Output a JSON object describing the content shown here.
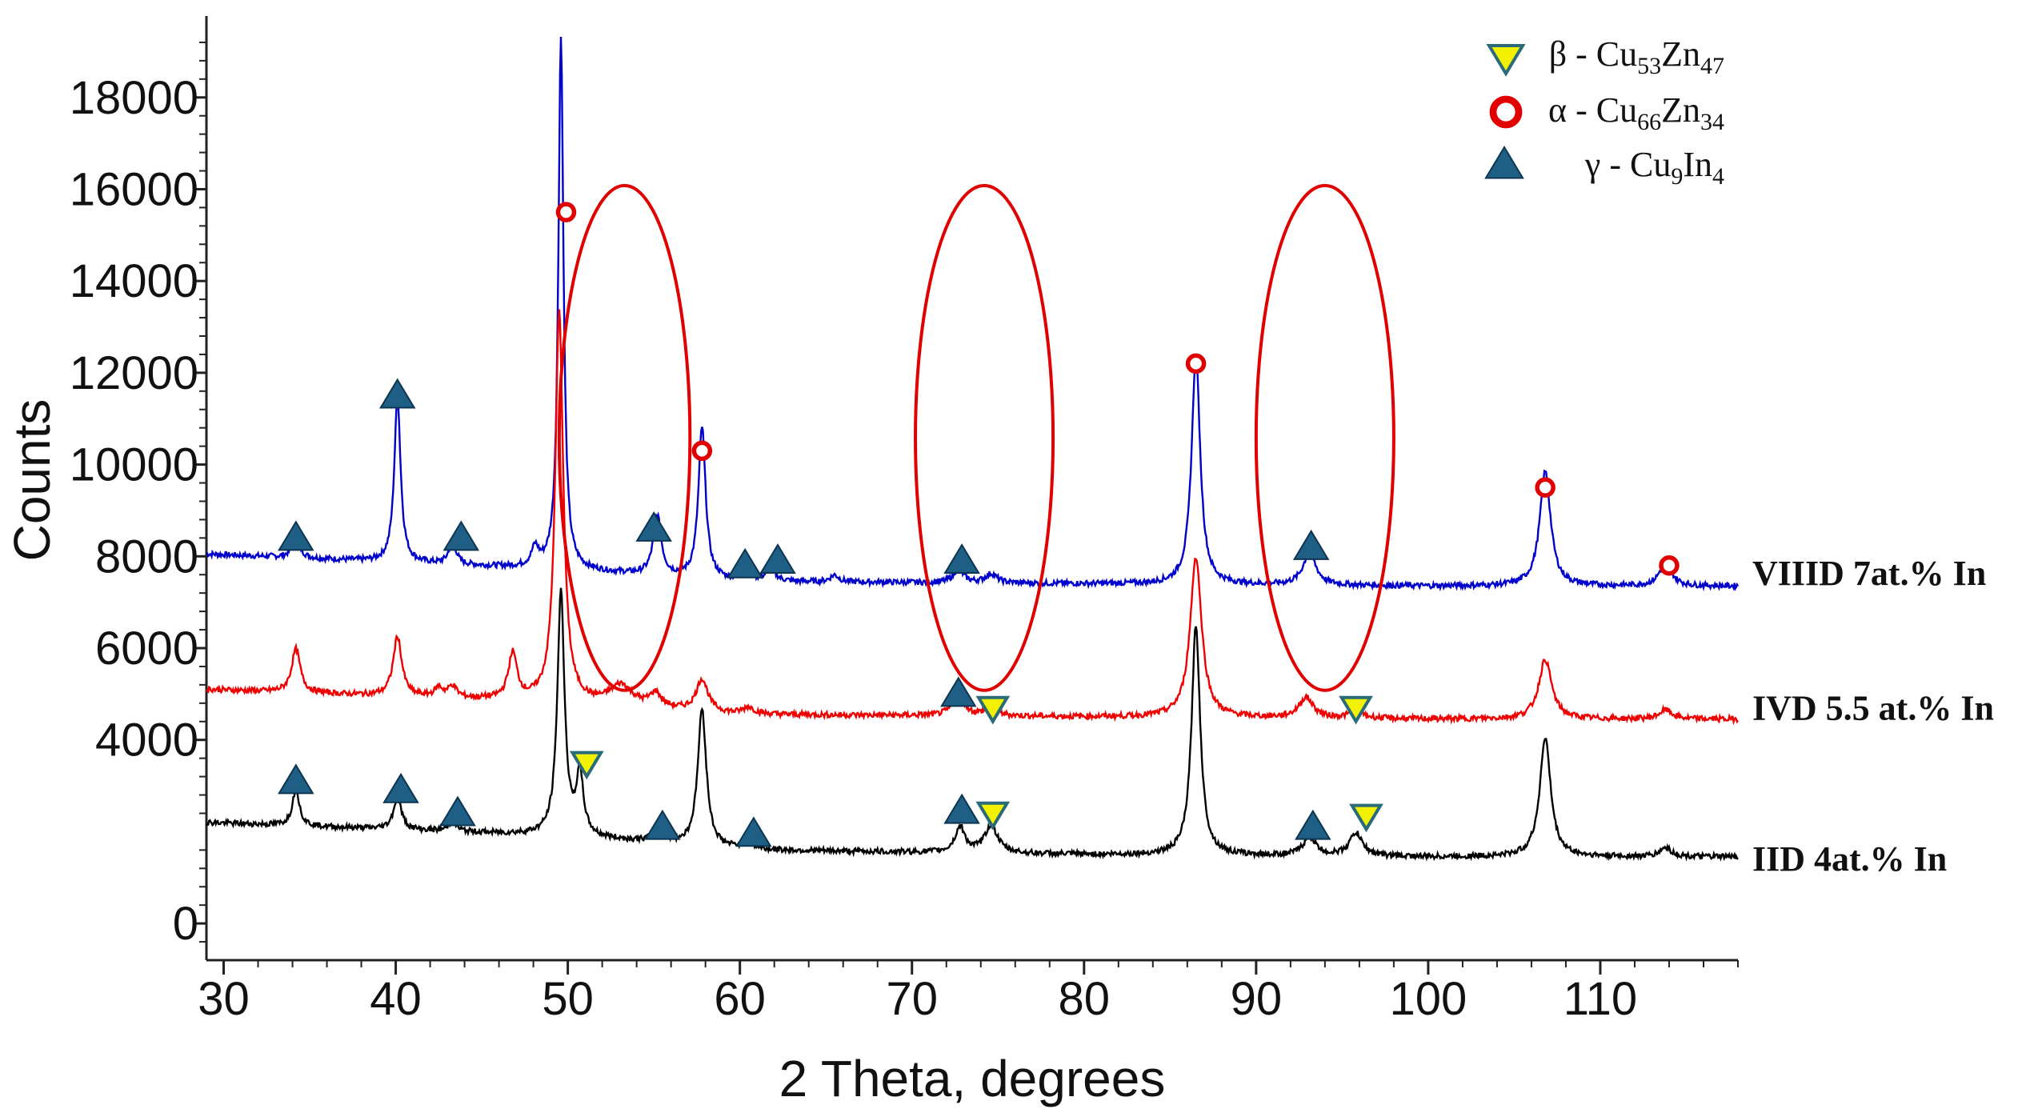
{
  "chart_data": {
    "type": "line",
    "title": "",
    "xlabel": "2 Theta, degrees",
    "ylabel": "Counts",
    "xlim": [
      29,
      118
    ],
    "ylim": [
      -800,
      19600
    ],
    "x_ticks": [
      30,
      40,
      50,
      60,
      70,
      80,
      90,
      100,
      110
    ],
    "x_tick_labels": [
      "30",
      "40",
      "50",
      "60",
      "70",
      "80",
      "90",
      "100",
      "110"
    ],
    "y_ticks": [
      0,
      4000,
      6000,
      8000,
      10000,
      12000,
      14000,
      16000,
      18000
    ],
    "y_tick_labels": [
      "0",
      "4000",
      "6000",
      "8000",
      "10000",
      "12000",
      "14000",
      "16000",
      "18000"
    ],
    "grid": false,
    "legend": {
      "position": "top-right",
      "entries": [
        {
          "marker": "beta",
          "label": "β - Cu",
          "sub1": "53",
          "mid": "Zn",
          "sub2": "47"
        },
        {
          "marker": "alpha",
          "label": "α - Cu",
          "sub1": "66",
          "mid": "Zn",
          "sub2": "34"
        },
        {
          "marker": "gamma",
          "label": "γ - Cu",
          "sub1": "9",
          "mid": "In",
          "sub2": "4"
        }
      ]
    },
    "series": [
      {
        "name": "VIIID 7at.% In",
        "color": "#0000cc",
        "baseline": [
          [
            29,
            8050
          ],
          [
            50,
            7700
          ],
          [
            60,
            7450
          ],
          [
            80,
            7400
          ],
          [
            100,
            7350
          ],
          [
            118,
            7350
          ]
        ],
        "peaks": [
          [
            34.2,
            500,
            0.25
          ],
          [
            40.1,
            3600,
            0.22
          ],
          [
            43.3,
            500,
            0.25
          ],
          [
            48.1,
            400,
            0.25
          ],
          [
            49.6,
            11600,
            0.18
          ],
          [
            55.2,
            1300,
            0.28
          ],
          [
            57.8,
            3300,
            0.25
          ],
          [
            60.4,
            250,
            0.3
          ],
          [
            61.8,
            300,
            0.3
          ],
          [
            65.5,
            150,
            0.3
          ],
          [
            72.7,
            300,
            0.35
          ],
          [
            74.6,
            200,
            0.4
          ],
          [
            86.5,
            5000,
            0.3
          ],
          [
            93.1,
            700,
            0.45
          ],
          [
            106.8,
            2500,
            0.38
          ],
          [
            113.8,
            550,
            0.4
          ]
        ],
        "label_y": 7380
      },
      {
        "name": "IVD 5.5 at.% In",
        "color": "#ee0000",
        "baseline": [
          [
            29,
            5100
          ],
          [
            50,
            4800
          ],
          [
            60,
            4550
          ],
          [
            80,
            4500
          ],
          [
            100,
            4450
          ],
          [
            118,
            4450
          ]
        ],
        "peaks": [
          [
            34.2,
            950,
            0.3
          ],
          [
            40.1,
            1300,
            0.3
          ],
          [
            42.5,
            200,
            0.3
          ],
          [
            43.3,
            250,
            0.3
          ],
          [
            46.8,
            1000,
            0.3
          ],
          [
            49.5,
            8500,
            0.28
          ],
          [
            53.1,
            450,
            0.8
          ],
          [
            55.1,
            300,
            0.4
          ],
          [
            57.8,
            700,
            0.4
          ],
          [
            60.5,
            150,
            0.4
          ],
          [
            72.7,
            400,
            0.45
          ],
          [
            74.6,
            150,
            0.5
          ],
          [
            86.5,
            3500,
            0.4
          ],
          [
            92.9,
            450,
            0.5
          ],
          [
            95.8,
            150,
            0.5
          ],
          [
            106.8,
            1300,
            0.45
          ],
          [
            113.8,
            200,
            0.45
          ]
        ],
        "label_y": 4440
      },
      {
        "name": "IID  4at.% In",
        "color": "#000000",
        "baseline": [
          [
            29,
            2200
          ],
          [
            50,
            1900
          ],
          [
            60,
            1600
          ],
          [
            80,
            1500
          ],
          [
            100,
            1450
          ],
          [
            118,
            1450
          ]
        ],
        "peaks": [
          [
            34.2,
            800,
            0.25
          ],
          [
            40.1,
            700,
            0.28
          ],
          [
            43.3,
            200,
            0.3
          ],
          [
            49.6,
            5300,
            0.25
          ],
          [
            50.7,
            1300,
            0.25
          ],
          [
            55.3,
            300,
            0.4
          ],
          [
            57.8,
            3000,
            0.3
          ],
          [
            60.4,
            200,
            0.35
          ],
          [
            72.8,
            550,
            0.35
          ],
          [
            74.6,
            600,
            0.45
          ],
          [
            86.5,
            5000,
            0.3
          ],
          [
            93.1,
            400,
            0.45
          ],
          [
            95.8,
            500,
            0.45
          ],
          [
            106.8,
            2600,
            0.38
          ],
          [
            113.8,
            200,
            0.4
          ]
        ],
        "label_y": 1150
      }
    ],
    "annotations": {
      "alpha": [
        [
          49.9,
          15500
        ],
        [
          57.8,
          10300
        ],
        [
          86.5,
          12200
        ],
        [
          106.8,
          9500
        ],
        [
          114.0,
          7800
        ]
      ],
      "gamma": [
        [
          34.2,
          8400
        ],
        [
          40.1,
          11500
        ],
        [
          43.8,
          8400
        ],
        [
          55.0,
          8600
        ],
        [
          60.3,
          7800
        ],
        [
          62.2,
          7900
        ],
        [
          72.9,
          7900
        ],
        [
          93.2,
          8200
        ],
        [
          72.7,
          5000
        ],
        [
          34.2,
          3100
        ],
        [
          40.3,
          2900
        ],
        [
          43.6,
          2400
        ],
        [
          55.5,
          2100
        ],
        [
          60.8,
          1950
        ],
        [
          72.9,
          2450
        ],
        [
          93.3,
          2100
        ]
      ],
      "beta": [
        [
          74.7,
          4700
        ],
        [
          95.8,
          4700
        ],
        [
          51.1,
          3500
        ],
        [
          74.7,
          2400
        ],
        [
          96.4,
          2350
        ]
      ],
      "ellipses": [
        [
          53.3,
          10580,
          3.8,
          5500
        ],
        [
          74.2,
          10580,
          4.0,
          5500
        ],
        [
          94.0,
          10580,
          4.0,
          5500
        ]
      ]
    }
  }
}
